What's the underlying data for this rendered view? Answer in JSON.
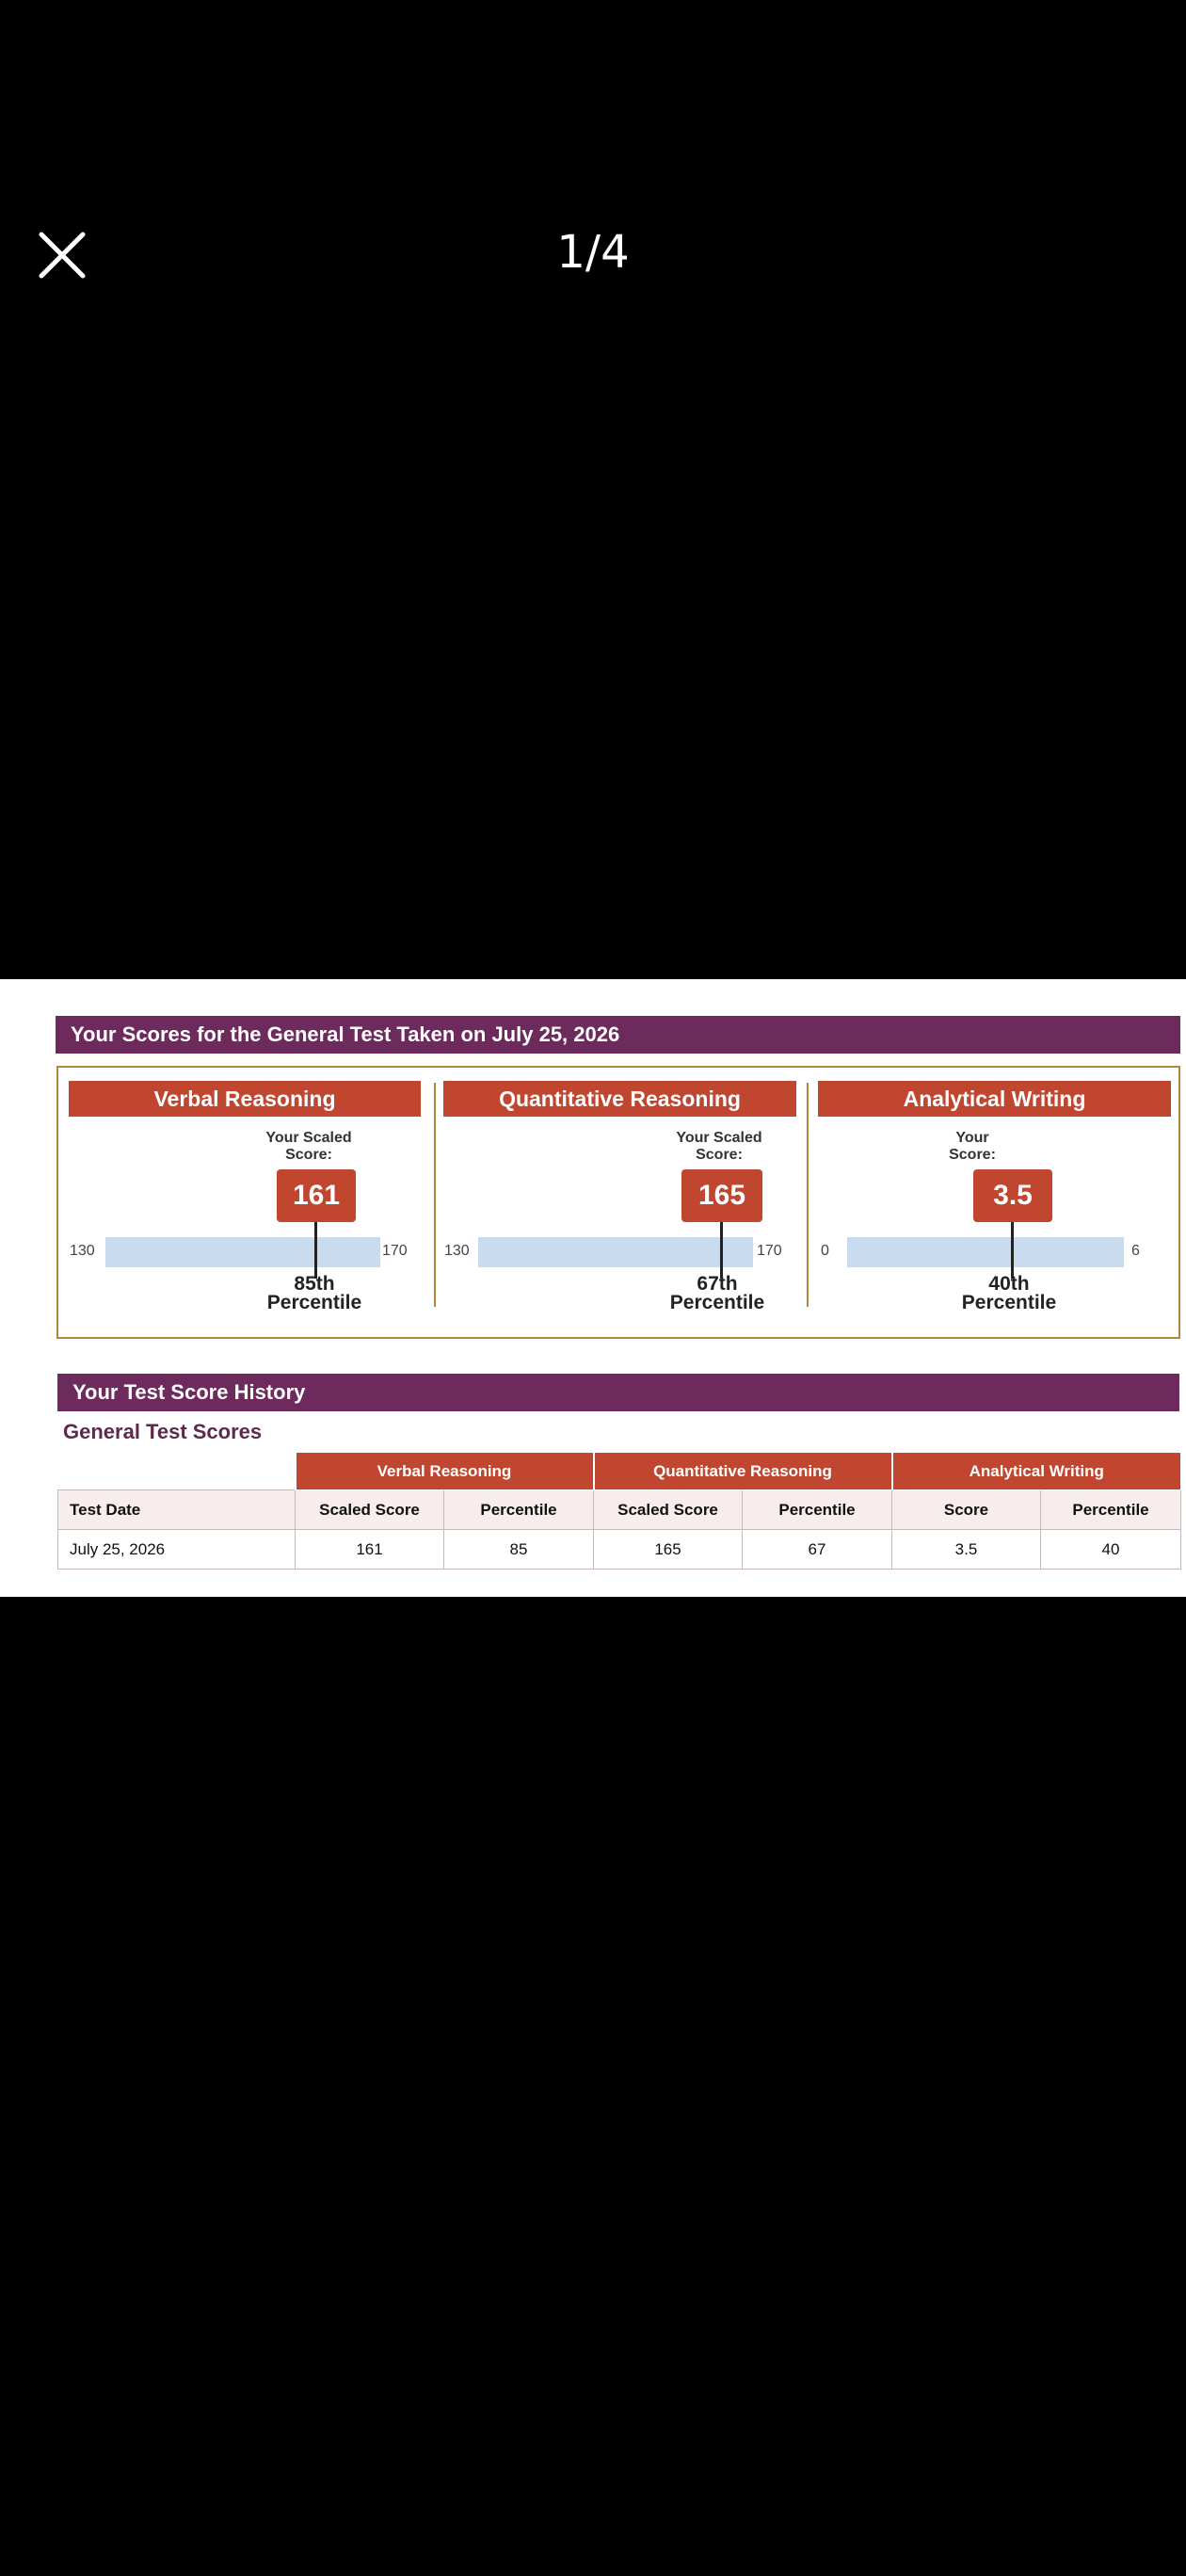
{
  "viewer": {
    "counter": "1/4"
  },
  "report": {
    "scores_title": "Your Scores for the General Test Taken on July 25, 2026",
    "sections": [
      {
        "name": "Verbal Reasoning",
        "caption_line1": "Your Scaled",
        "caption_line2": "Score:",
        "score": "161",
        "scale_min": "130",
        "scale_max": "170",
        "percentile_line1": "85th",
        "percentile_line2": "Percentile"
      },
      {
        "name": "Quantitative Reasoning",
        "caption_line1": "Your Scaled",
        "caption_line2": "Score:",
        "score": "165",
        "scale_min": "130",
        "scale_max": "170",
        "percentile_line1": "67th",
        "percentile_line2": "Percentile"
      },
      {
        "name": "Analytical Writing",
        "caption_line1": "Your",
        "caption_line2": "Score:",
        "score": "3.5",
        "scale_min": "0",
        "scale_max": "6",
        "percentile_line1": "40th",
        "percentile_line2": "Percentile"
      }
    ],
    "history_title": "Your Test Score History",
    "history_subtitle": "General Test Scores",
    "history_table": {
      "groups": [
        "Verbal Reasoning",
        "Quantitative Reasoning",
        "Analytical Writing"
      ],
      "columns": [
        "Test Date",
        "Scaled Score",
        "Percentile",
        "Scaled Score",
        "Percentile",
        "Score",
        "Percentile"
      ],
      "rows": [
        [
          "July 25, 2026",
          "161",
          "85",
          "165",
          "67",
          "3.5",
          "40"
        ]
      ]
    }
  }
}
